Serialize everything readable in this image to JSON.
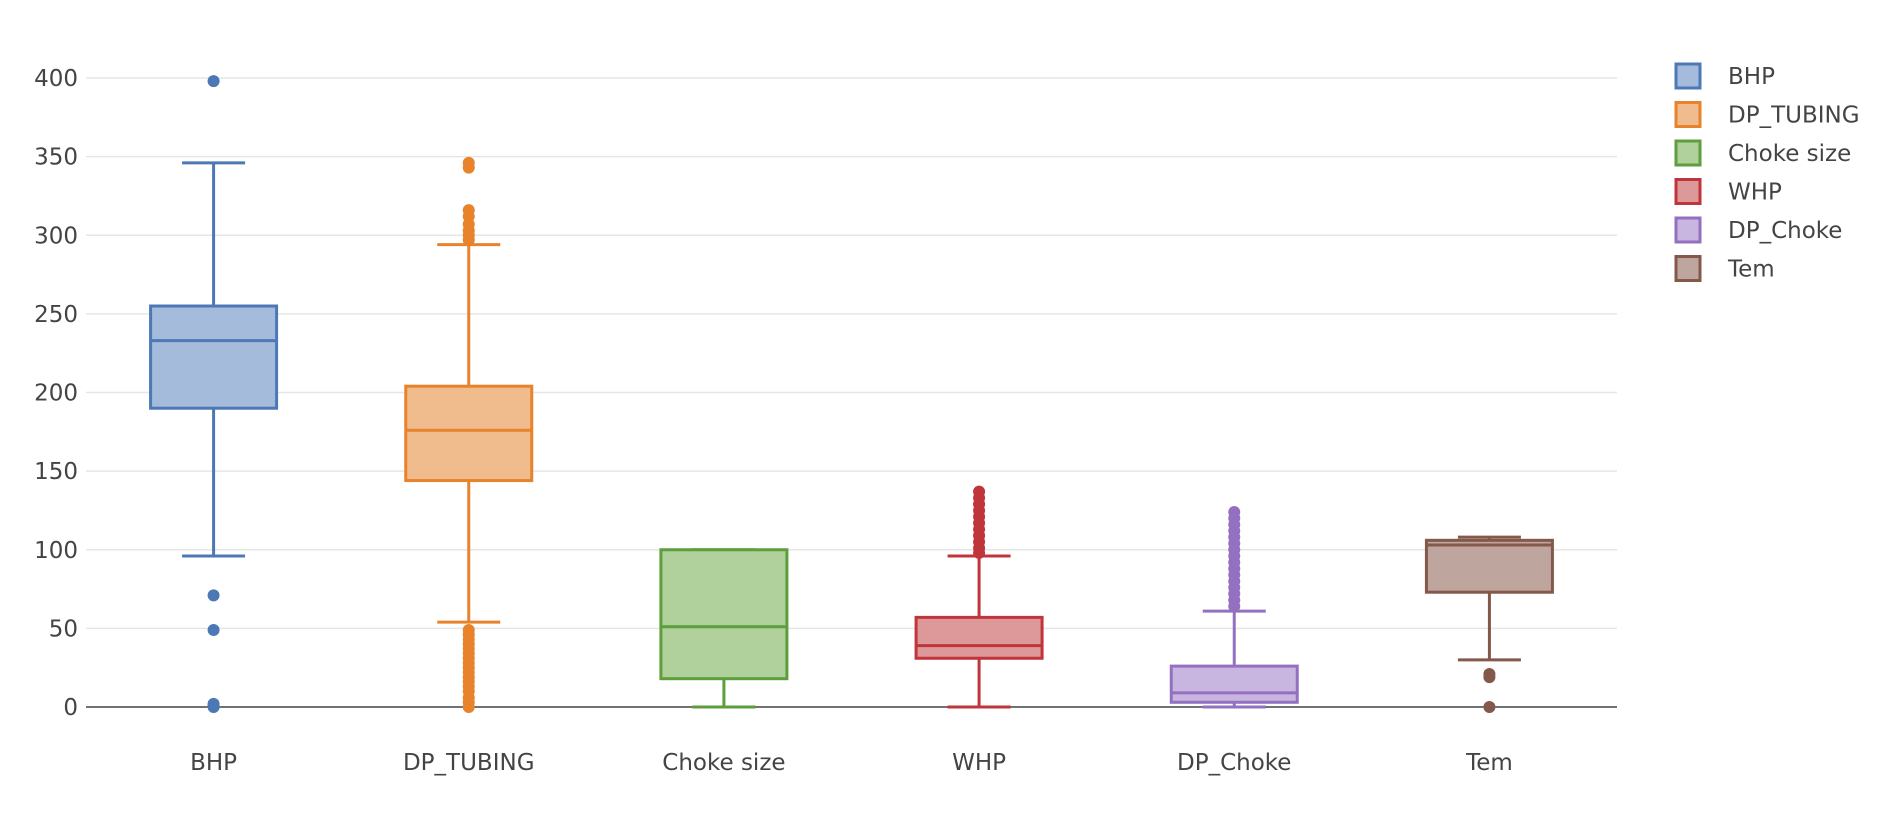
{
  "chart_data": {
    "type": "box",
    "yticks": [
      0,
      50,
      100,
      150,
      200,
      250,
      300,
      350,
      400
    ],
    "ylim": [
      -12,
      412
    ],
    "grid": true,
    "legend_position": "top-right",
    "series": [
      {
        "name": "BHP",
        "color": "#4c78b5",
        "fill": "#a5bbdc",
        "min": 96,
        "q1": 190,
        "median": 233,
        "q3": 255,
        "max": 346,
        "outliers": [
          398,
          71,
          49,
          2,
          1,
          0
        ]
      },
      {
        "name": "DP_TUBING",
        "color": "#e8822b",
        "fill": "#f0bc8e",
        "min": 54,
        "q1": 144,
        "median": 176,
        "q3": 204,
        "max": 294,
        "outliers": [
          346,
          343,
          316,
          312,
          307,
          303,
          300,
          297,
          49,
          46,
          43,
          40,
          37,
          34,
          31,
          28,
          25,
          22,
          19,
          16,
          13,
          10,
          6,
          3,
          0
        ]
      },
      {
        "name": "Choke size",
        "color": "#5d9e3d",
        "fill": "#b0d19b",
        "min": 0,
        "q1": 18,
        "median": 51,
        "q3": 100,
        "max": 100,
        "outliers": []
      },
      {
        "name": "WHP",
        "color": "#c0343b",
        "fill": "#dd989a",
        "min": 0,
        "q1": 31,
        "median": 39,
        "q3": 57,
        "max": 96,
        "outliers": [
          137,
          133,
          129,
          125,
          121,
          117,
          113,
          109,
          105,
          101,
          98
        ]
      },
      {
        "name": "DP_Choke",
        "color": "#9370c0",
        "fill": "#c8b6e0",
        "min": 0,
        "q1": 3,
        "median": 9,
        "q3": 26,
        "max": 61,
        "outliers": [
          124,
          120,
          116,
          112,
          108,
          104,
          100,
          96,
          92,
          88,
          84,
          80,
          76,
          72,
          68,
          64
        ]
      },
      {
        "name": "Tem",
        "color": "#84584a",
        "fill": "#bea69e",
        "min": 30,
        "q1": 73,
        "median": 103,
        "q3": 106,
        "max": 108,
        "outliers": [
          21,
          19,
          0
        ]
      }
    ]
  }
}
